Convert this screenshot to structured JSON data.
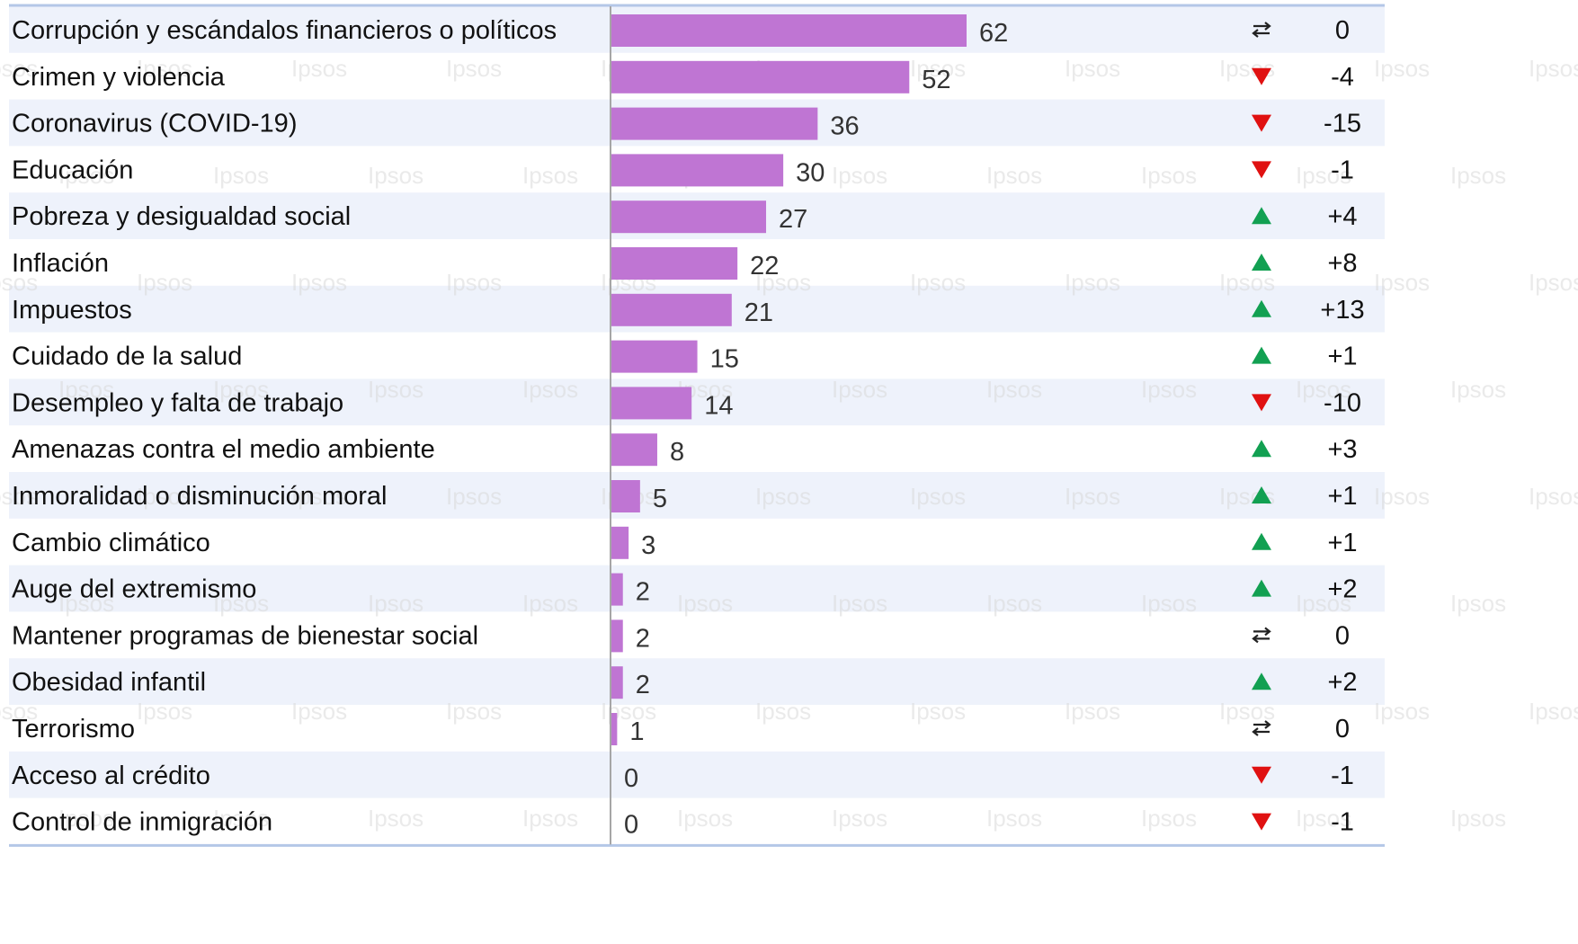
{
  "watermark": "Ipsos",
  "chart_data": {
    "type": "bar",
    "orientation": "horizontal",
    "xlim": [
      0,
      62
    ],
    "categories": [
      "Corrupción y escándalos financieros o políticos",
      "Crimen y violencia",
      "Coronavirus (COVID-19)",
      "Educación",
      "Pobreza y desigualdad social",
      "Inflación",
      "Impuestos",
      "Cuidado de la salud",
      "Desempleo y falta de trabajo",
      "Amenazas contra el medio ambiente",
      "Inmoralidad o disminución moral",
      "Cambio climático",
      "Auge del extremismo",
      "Mantener programas de bienestar social",
      "Obesidad infantil",
      "Terrorismo",
      "Acceso al crédito",
      "Control de inmigración"
    ],
    "values": [
      62,
      52,
      36,
      30,
      27,
      22,
      21,
      15,
      14,
      8,
      5,
      3,
      2,
      2,
      2,
      1,
      0,
      0
    ],
    "changes": [
      "0",
      "-4",
      "-15",
      "-1",
      "+4",
      "+8",
      "+13",
      "+1",
      "-10",
      "+3",
      "+1",
      "+1",
      "+2",
      "0",
      "+2",
      "0",
      "-1",
      "-1"
    ],
    "trend": [
      "same",
      "down",
      "down",
      "down",
      "up",
      "up",
      "up",
      "up",
      "down",
      "up",
      "up",
      "up",
      "up",
      "same",
      "up",
      "same",
      "down",
      "down"
    ],
    "colors": {
      "bar": "#BF75D3",
      "up": "#12A052",
      "down": "#E01111",
      "same": "#222222",
      "row_band": "#EEF2FB",
      "frame": "#B4C7E7",
      "divider": "#A6A6A6"
    },
    "grid": false,
    "legend": "none"
  }
}
